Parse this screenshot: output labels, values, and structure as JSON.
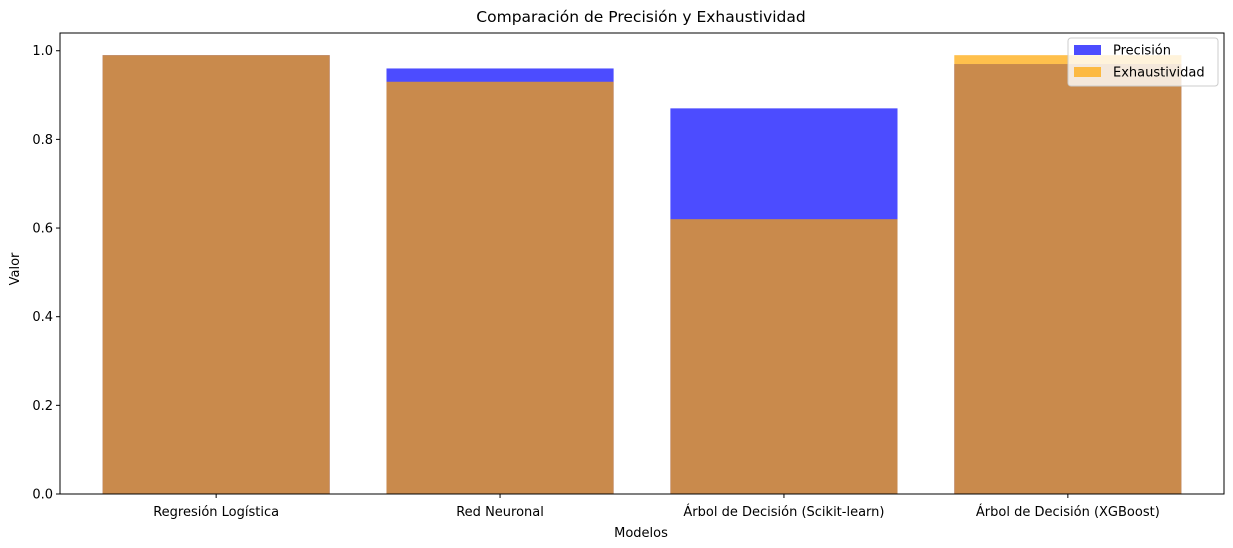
{
  "chart_data": {
    "type": "bar",
    "title": "Comparación de Precisión y Exhaustividad",
    "xlabel": "Modelos",
    "ylabel": "Valor",
    "categories": [
      "Regresión Logística",
      "Red Neuronal",
      "Árbol de Decisión (Scikit-learn)",
      "Árbol de Decisión (XGBoost)"
    ],
    "series": [
      {
        "name": "Precisión",
        "values": [
          0.99,
          0.96,
          0.87,
          0.97
        ],
        "color": "#0000ff",
        "opacity": 0.7
      },
      {
        "name": "Exhaustividad",
        "values": [
          0.99,
          0.93,
          0.62,
          0.99
        ],
        "color": "#ffa500",
        "opacity": 0.7
      }
    ],
    "ylim": [
      0,
      1.04
    ],
    "yticks": [
      0.0,
      0.2,
      0.4,
      0.6,
      0.8,
      1.0
    ],
    "ytick_labels": [
      "0.0",
      "0.2",
      "0.4",
      "0.6",
      "0.8",
      "1.0"
    ],
    "grid": false,
    "legend": "top-right"
  }
}
